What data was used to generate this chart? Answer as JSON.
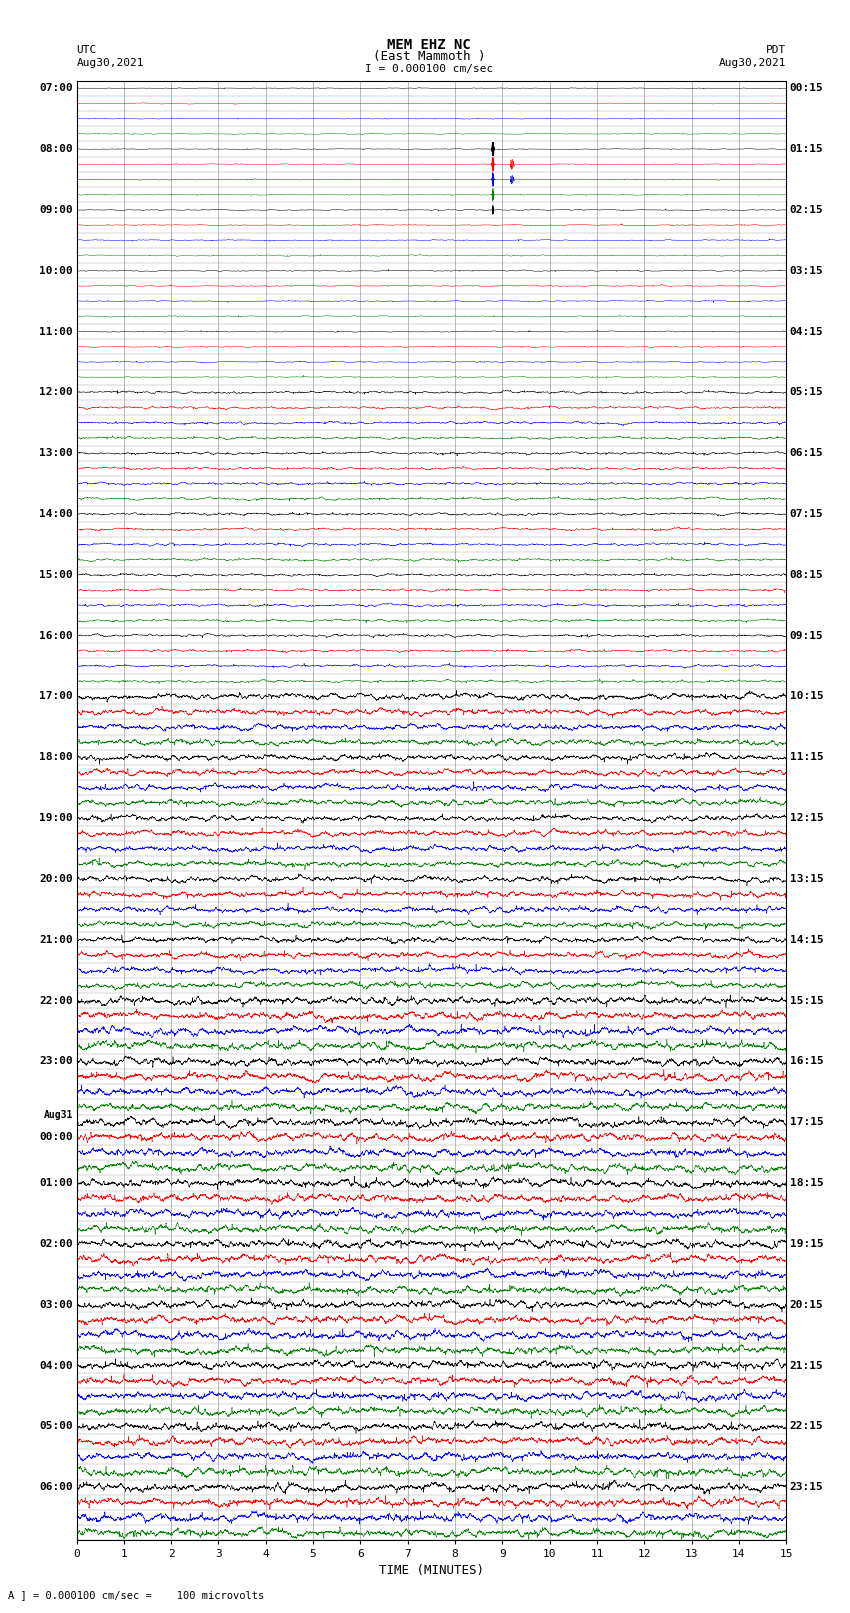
{
  "title_line1": "MEM EHZ NC",
  "title_line2": "(East Mammoth )",
  "scale_text": "I = 0.000100 cm/sec",
  "left_label": "UTC",
  "right_label": "PDT",
  "date_left": "Aug30,2021",
  "date_right": "Aug30,2021",
  "bottom_label": "TIME (MINUTES)",
  "footnote": "A ] = 0.000100 cm/sec =    100 microvolts",
  "xlim": [
    0,
    15
  ],
  "xticks": [
    0,
    1,
    2,
    3,
    4,
    5,
    6,
    7,
    8,
    9,
    10,
    11,
    12,
    13,
    14,
    15
  ],
  "left_times": [
    "07:00",
    "",
    "",
    "",
    "08:00",
    "",
    "",
    "",
    "09:00",
    "",
    "",
    "",
    "10:00",
    "",
    "",
    "",
    "11:00",
    "",
    "",
    "",
    "12:00",
    "",
    "",
    "",
    "13:00",
    "",
    "",
    "",
    "14:00",
    "",
    "",
    "",
    "15:00",
    "",
    "",
    "",
    "16:00",
    "",
    "",
    "",
    "17:00",
    "",
    "",
    "",
    "18:00",
    "",
    "",
    "",
    "19:00",
    "",
    "",
    "",
    "20:00",
    "",
    "",
    "",
    "21:00",
    "",
    "",
    "",
    "22:00",
    "",
    "",
    "",
    "23:00",
    "",
    "",
    "",
    "Aug31",
    "00:00",
    "",
    "",
    "01:00",
    "",
    "",
    "",
    "02:00",
    "",
    "",
    "",
    "03:00",
    "",
    "",
    "",
    "04:00",
    "",
    "",
    "",
    "05:00",
    "",
    "",
    "",
    "06:00",
    "",
    "",
    ""
  ],
  "right_times": [
    "00:15",
    "",
    "",
    "",
    "01:15",
    "",
    "",
    "",
    "02:15",
    "",
    "",
    "",
    "03:15",
    "",
    "",
    "",
    "04:15",
    "",
    "",
    "",
    "05:15",
    "",
    "",
    "",
    "06:15",
    "",
    "",
    "",
    "07:15",
    "",
    "",
    "",
    "08:15",
    "",
    "",
    "",
    "09:15",
    "",
    "",
    "",
    "10:15",
    "",
    "",
    "",
    "11:15",
    "",
    "",
    "",
    "12:15",
    "",
    "",
    "",
    "13:15",
    "",
    "",
    "",
    "14:15",
    "",
    "",
    "",
    "15:15",
    "",
    "",
    "",
    "16:15",
    "",
    "",
    "",
    "17:15",
    "",
    "",
    "",
    "18:15",
    "",
    "",
    "",
    "19:15",
    "",
    "",
    "",
    "20:15",
    "",
    "",
    "",
    "21:15",
    "",
    "",
    "",
    "22:15",
    "",
    "",
    "",
    "23:15",
    "",
    "",
    ""
  ],
  "n_traces": 96,
  "trace_colors_cycle": [
    "black",
    "red",
    "blue",
    "green"
  ],
  "bg_color": "white",
  "grid_color": "#888888",
  "fig_width": 8.5,
  "fig_height": 16.13,
  "dpi": 100
}
